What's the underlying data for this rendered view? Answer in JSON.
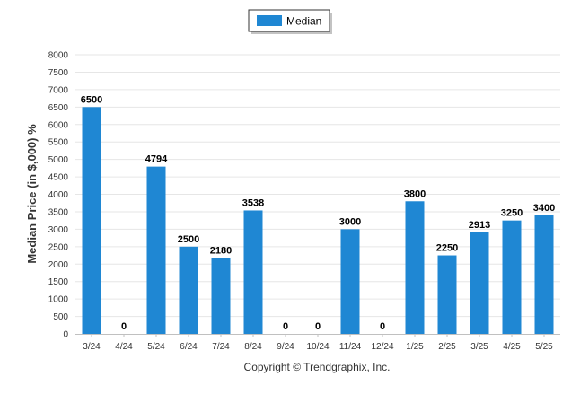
{
  "chart_data": {
    "type": "bar",
    "categories": [
      "3/24",
      "4/24",
      "5/24",
      "6/24",
      "7/24",
      "8/24",
      "9/24",
      "10/24",
      "11/24",
      "12/24",
      "1/25",
      "2/25",
      "3/25",
      "4/25",
      "5/25"
    ],
    "series": [
      {
        "name": "Median",
        "values": [
          6500,
          0,
          4794,
          2500,
          2180,
          3538,
          0,
          0,
          3000,
          0,
          3800,
          2250,
          2913,
          3250,
          3400
        ],
        "color": "#1f87d3"
      }
    ],
    "data_labels": [
      "6500",
      "0",
      "4794",
      "2500",
      "2180",
      "3538",
      "0",
      "0",
      "3000",
      "0",
      "3800",
      "2250",
      "2913",
      "3250",
      "3400"
    ],
    "title": "",
    "xlabel": "",
    "ylabel": "Median Price (in $,000) %",
    "ylim": [
      0,
      8000
    ],
    "yticks": [
      0,
      500,
      1000,
      1500,
      2000,
      2500,
      3000,
      3500,
      4000,
      4500,
      5000,
      5500,
      6000,
      6500,
      7000,
      7500,
      8000
    ],
    "grid": true,
    "legend_position": "top-center"
  },
  "footer": {
    "copyright": "Copyright © Trendgraphix, Inc."
  }
}
